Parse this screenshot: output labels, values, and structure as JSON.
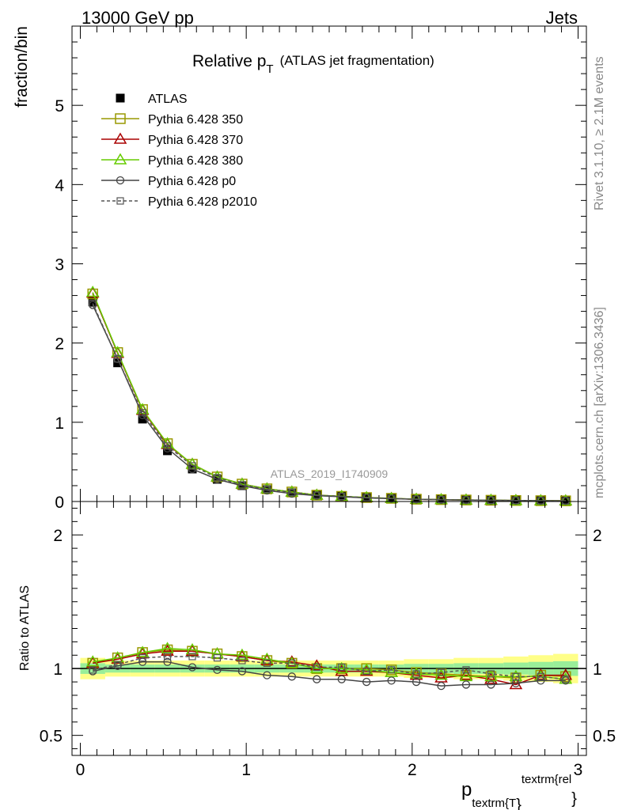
{
  "header": {
    "energy_label": "13000 GeV pp",
    "process_label": "Jets"
  },
  "sidebar": {
    "rivet_label": "Rivet 3.1.10, ≥ 2.1M events",
    "source_label": "mcplots.cern.ch [arXiv:1306.3436]"
  },
  "watermark": "ATLAS_2019_I1740909",
  "chart_data": [
    {
      "type": "line",
      "title": "Relative p_T (ATLAS jet fragmentation)",
      "title_main": "Relative p",
      "title_sub": "T",
      "title_suffix": "(ATLAS jet fragmentation)",
      "ylabel": "fraction/bin",
      "xlim": [
        -0.05,
        3.05
      ],
      "ylim": [
        0,
        6
      ],
      "yticks": [
        0,
        1,
        2,
        3,
        4,
        5
      ],
      "ytick_labels": [
        "0",
        "1",
        "2",
        "3",
        "4",
        "5"
      ],
      "x": [
        0.075,
        0.225,
        0.375,
        0.525,
        0.675,
        0.825,
        0.975,
        1.125,
        1.275,
        1.425,
        1.575,
        1.725,
        1.875,
        2.025,
        2.175,
        2.325,
        2.475,
        2.625,
        2.775,
        2.925
      ],
      "legend_position": "top-left",
      "series": [
        {
          "name": "ATLAS",
          "color": "#000000",
          "marker": "filled-square",
          "line": "none",
          "values": [
            2.52,
            1.75,
            1.04,
            0.64,
            0.41,
            0.28,
            0.2,
            0.15,
            0.11,
            0.08,
            0.065,
            0.05,
            0.04,
            0.03,
            0.025,
            0.02,
            0.017,
            0.014,
            0.011,
            0.009
          ]
        },
        {
          "name": "Pythia 6.428 350",
          "color": "#999900",
          "marker": "open-square",
          "line": "solid",
          "values": [
            2.62,
            1.88,
            1.16,
            0.73,
            0.47,
            0.31,
            0.22,
            0.16,
            0.12,
            0.08,
            0.065,
            0.05,
            0.04,
            0.029,
            0.024,
            0.019,
            0.016,
            0.013,
            0.0105,
            0.0085
          ]
        },
        {
          "name": "Pythia 6.428 370",
          "color": "#aa0000",
          "marker": "open-triangle",
          "line": "solid",
          "values": [
            2.63,
            1.87,
            1.15,
            0.72,
            0.47,
            0.31,
            0.22,
            0.16,
            0.12,
            0.08,
            0.064,
            0.049,
            0.039,
            0.028,
            0.023,
            0.019,
            0.015,
            0.012,
            0.0104,
            0.0085
          ]
        },
        {
          "name": "Pythia 6.428 380",
          "color": "#66cc00",
          "marker": "open-triangle",
          "line": "solid",
          "values": [
            2.64,
            1.88,
            1.16,
            0.73,
            0.47,
            0.31,
            0.22,
            0.16,
            0.12,
            0.08,
            0.065,
            0.05,
            0.039,
            0.029,
            0.024,
            0.019,
            0.016,
            0.013,
            0.0105,
            0.0085
          ]
        },
        {
          "name": "Pythia 6.428 p0",
          "color": "#444444",
          "marker": "open-circle",
          "line": "solid",
          "values": [
            2.48,
            1.8,
            1.09,
            0.67,
            0.41,
            0.28,
            0.2,
            0.14,
            0.1,
            0.074,
            0.06,
            0.045,
            0.036,
            0.027,
            0.022,
            0.018,
            0.015,
            0.012,
            0.01,
            0.0082
          ]
        },
        {
          "name": "Pythia 6.428 p2010",
          "color": "#555555",
          "marker": "open-square-small",
          "line": "dashed",
          "values": [
            2.5,
            1.8,
            1.12,
            0.7,
            0.45,
            0.3,
            0.21,
            0.155,
            0.115,
            0.08,
            0.065,
            0.05,
            0.04,
            0.029,
            0.024,
            0.0198,
            0.016,
            0.013,
            0.0105,
            0.0086
          ]
        }
      ]
    },
    {
      "type": "line",
      "ylabel": "Ratio to ATLAS",
      "xlabel": "p",
      "xlabel_sub": "textrm{T",
      "xlabel_sup": "textrm{rel",
      "xlabel_closing": "}",
      "xlim": [
        -0.05,
        3.05
      ],
      "ylim": [
        0.35,
        2.25
      ],
      "yticks": [
        0.5,
        1,
        2
      ],
      "ytick_labels": [
        "0.5",
        "1",
        "2"
      ],
      "xticks": [
        0,
        1,
        2,
        3
      ],
      "xtick_labels": [
        "0",
        "1",
        "2",
        "3"
      ],
      "reference": 1,
      "x": [
        0.075,
        0.225,
        0.375,
        0.525,
        0.675,
        0.825,
        0.975,
        1.125,
        1.275,
        1.425,
        1.575,
        1.725,
        1.875,
        2.025,
        2.175,
        2.325,
        2.475,
        2.625,
        2.775,
        2.925
      ],
      "band_stat": [
        0.04,
        0.03,
        0.03,
        0.03,
        0.03,
        0.03,
        0.03,
        0.03,
        0.03,
        0.03,
        0.03,
        0.03,
        0.03,
        0.035,
        0.035,
        0.04,
        0.04,
        0.045,
        0.05,
        0.055
      ],
      "band_total": [
        0.08,
        0.06,
        0.06,
        0.06,
        0.06,
        0.06,
        0.06,
        0.06,
        0.06,
        0.06,
        0.06,
        0.06,
        0.06,
        0.07,
        0.07,
        0.08,
        0.08,
        0.09,
        0.1,
        0.11
      ],
      "band_colors": {
        "stat": "#99ee99",
        "total": "#ffff88"
      },
      "series": [
        {
          "name": "Pythia 6.428 350",
          "color": "#999900",
          "marker": "open-square",
          "line": "solid",
          "values": [
            1.04,
            1.08,
            1.12,
            1.14,
            1.13,
            1.11,
            1.09,
            1.06,
            1.04,
            1.0,
            1.0,
            1.0,
            0.99,
            0.97,
            0.96,
            0.95,
            0.94,
            0.93,
            0.95,
            0.94
          ]
        },
        {
          "name": "Pythia 6.428 370",
          "color": "#aa0000",
          "marker": "open-triangle",
          "line": "solid",
          "values": [
            1.04,
            1.07,
            1.11,
            1.13,
            1.13,
            1.11,
            1.09,
            1.06,
            1.05,
            1.02,
            0.98,
            0.98,
            0.97,
            0.95,
            0.93,
            0.95,
            0.92,
            0.88,
            0.95,
            0.95
          ]
        },
        {
          "name": "Pythia 6.428 380",
          "color": "#66cc00",
          "marker": "open-triangle",
          "line": "solid",
          "values": [
            1.05,
            1.08,
            1.12,
            1.15,
            1.14,
            1.11,
            1.1,
            1.07,
            1.04,
            1.0,
            1.0,
            0.99,
            0.97,
            0.96,
            0.95,
            0.94,
            0.94,
            0.94,
            0.94,
            0.92
          ]
        },
        {
          "name": "Pythia 6.428 p0",
          "color": "#444444",
          "marker": "open-circle",
          "line": "solid",
          "values": [
            0.98,
            1.02,
            1.05,
            1.05,
            1.01,
            0.99,
            0.98,
            0.95,
            0.94,
            0.92,
            0.92,
            0.9,
            0.91,
            0.9,
            0.87,
            0.88,
            0.88,
            0.89,
            0.91,
            0.91
          ]
        },
        {
          "name": "Pythia 6.428 p2010",
          "color": "#555555",
          "marker": "open-square-small",
          "line": "dashed",
          "values": [
            0.99,
            1.03,
            1.08,
            1.09,
            1.09,
            1.08,
            1.06,
            1.04,
            1.04,
            1.01,
            1.01,
            0.98,
            0.99,
            0.96,
            0.97,
            0.99,
            0.96,
            0.94,
            0.94,
            0.92
          ]
        }
      ]
    }
  ]
}
